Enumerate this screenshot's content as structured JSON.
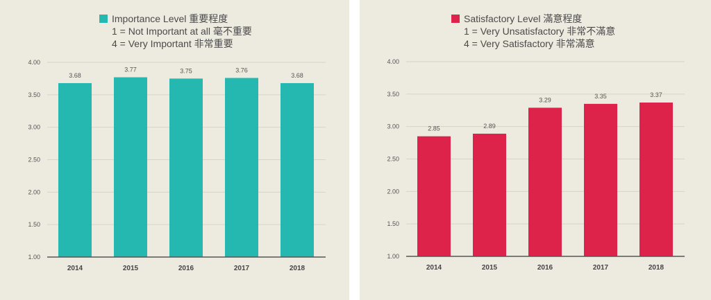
{
  "chart_data": [
    {
      "type": "bar",
      "categories": [
        "2014",
        "2015",
        "2016",
        "2017",
        "2018"
      ],
      "series": [
        {
          "name": "Importance Level 重要程度",
          "values": [
            3.68,
            3.77,
            3.75,
            3.76,
            3.68
          ]
        }
      ],
      "data_labels": [
        "3.68",
        "3.77",
        "3.75",
        "3.76",
        "3.68"
      ],
      "ylim": [
        1.0,
        4.0
      ],
      "yticks": [
        "1.00",
        "1.50",
        "2.00",
        "2.50",
        "3.00",
        "3.50",
        "4.00"
      ],
      "ytick_values": [
        1.0,
        1.5,
        2.0,
        2.5,
        3.0,
        3.5,
        4.0
      ],
      "grid": true,
      "legend": {
        "title": "Importance Level 重要程度",
        "lines": [
          "1 = Not Important at all 毫不重要",
          "4 = Very Important 非常重要"
        ],
        "position": "top-center"
      },
      "color": "#25b8b0"
    },
    {
      "type": "bar",
      "categories": [
        "2014",
        "2015",
        "2016",
        "2017",
        "2018"
      ],
      "series": [
        {
          "name": "Satisfactory Level 滿意程度",
          "values": [
            2.85,
            2.89,
            3.29,
            3.35,
            3.37
          ]
        }
      ],
      "data_labels": [
        "2.85",
        "2.89",
        "3.29",
        "3.35",
        "3.37"
      ],
      "ylim": [
        1.0,
        4.0
      ],
      "yticks": [
        "1.00",
        "1.50",
        "2.00",
        "2.50",
        "3.00",
        "3.50",
        "4.00"
      ],
      "ytick_values": [
        1.0,
        1.5,
        2.0,
        2.5,
        3.0,
        3.5,
        4.0
      ],
      "grid": true,
      "legend": {
        "title": "Satisfactory Level 滿意程度",
        "lines": [
          "1 = Very Unsatisfactory 非常不滿意",
          "4 = Very Satisfactory 非常滿意"
        ],
        "position": "top-center"
      },
      "color": "#dd2349"
    }
  ]
}
